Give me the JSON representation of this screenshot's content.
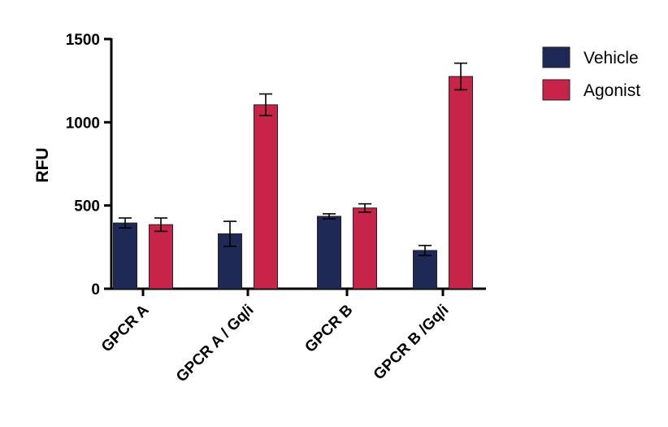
{
  "chart_data": {
    "type": "bar",
    "title": "",
    "xlabel": "",
    "ylabel": "RFU",
    "ylim": [
      0,
      1500
    ],
    "yticks": [
      0,
      500,
      1000,
      1500
    ],
    "grid": false,
    "legend_position": "top-right",
    "categories": [
      "GPCR A",
      "GPCR A / Gq/i",
      "GPCR B",
      "GPCR B /Gq/i"
    ],
    "series": [
      {
        "name": "Vehicle",
        "color": "#1e2a55",
        "values": [
          395,
          330,
          435,
          230
        ],
        "errors": [
          30,
          75,
          15,
          30
        ]
      },
      {
        "name": "Agonist",
        "color": "#c8244a",
        "values": [
          385,
          1105,
          485,
          1275
        ],
        "errors": [
          40,
          65,
          25,
          80
        ]
      }
    ]
  }
}
